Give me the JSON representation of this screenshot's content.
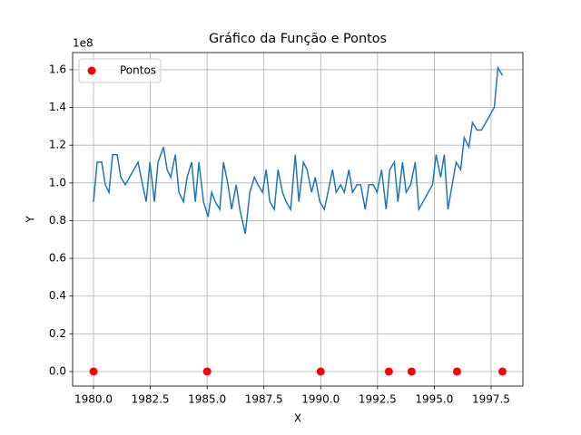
{
  "chart_data": {
    "type": "line",
    "title": "Gráfico da Função e Pontos",
    "x_label": "X",
    "y_label": "Y",
    "y_offset_label": "1e8",
    "xlim": [
      1979.08,
      1998.9
    ],
    "ylim": [
      -0.077,
      1.691
    ],
    "xticks": [
      {
        "value": 1980,
        "label": "1980.0"
      },
      {
        "value": 1982.5,
        "label": "1982.5"
      },
      {
        "value": 1985,
        "label": "1985.0"
      },
      {
        "value": 1987.5,
        "label": "1987.5"
      },
      {
        "value": 1990,
        "label": "1990.0"
      },
      {
        "value": 1992.5,
        "label": "1992.5"
      },
      {
        "value": 1995,
        "label": "1995.0"
      },
      {
        "value": 1997.5,
        "label": "1997.5"
      }
    ],
    "yticks": [
      {
        "value": 0,
        "label": "0.0"
      },
      0.2,
      0.4,
      0.6,
      0.8,
      {
        "value": 1,
        "label": "1.0"
      },
      1.2,
      1.4,
      1.6
    ],
    "grid": true,
    "legend": "upper left",
    "series": [
      {
        "type": "line",
        "color": "#1f77b4",
        "x": [
          1980.0,
          1980.16,
          1980.36,
          1980.52,
          1980.68,
          1980.84,
          1981.04,
          1981.2,
          1981.4,
          1981.96,
          1982.16,
          1982.32,
          1982.48,
          1982.68,
          1982.84,
          1983.08,
          1983.24,
          1983.4,
          1983.6,
          1983.76,
          1983.96,
          1984.12,
          1984.32,
          1984.48,
          1984.64,
          1984.84,
          1985.04,
          1985.2,
          1985.36,
          1985.56,
          1985.72,
          1985.92,
          1986.08,
          1986.28,
          1986.44,
          1986.68,
          1986.88,
          1987.08,
          1987.24,
          1987.44,
          1987.6,
          1987.76,
          1987.96,
          1988.12,
          1988.32,
          1988.48,
          1988.68,
          1988.88,
          1989.04,
          1989.24,
          1989.4,
          1989.6,
          1989.76,
          1989.96,
          1990.16,
          1990.32,
          1990.52,
          1990.68,
          1990.88,
          1991.04,
          1991.24,
          1991.4,
          1991.6,
          1991.76,
          1991.96,
          1992.12,
          1992.32,
          1992.48,
          1992.68,
          1992.88,
          1993.04,
          1993.24,
          1993.4,
          1993.6,
          1993.76,
          1993.96,
          1994.16,
          1994.32,
          1994.92,
          1995.08,
          1995.28,
          1995.44,
          1995.6,
          1995.96,
          1996.16,
          1996.32,
          1996.52,
          1996.68,
          1996.88,
          1997.08,
          1997.64,
          1997.8,
          1998.0
        ],
        "values": [
          0.9,
          1.11,
          1.11,
          0.99,
          0.95,
          1.15,
          1.15,
          1.03,
          0.99,
          1.11,
          0.99,
          0.9,
          1.11,
          0.9,
          1.11,
          1.19,
          1.07,
          1.03,
          1.15,
          0.95,
          0.9,
          1.03,
          1.11,
          0.9,
          1.11,
          0.9,
          0.82,
          0.95,
          0.9,
          0.86,
          1.11,
          0.99,
          0.86,
          0.99,
          0.86,
          0.73,
          0.95,
          1.03,
          0.99,
          0.95,
          1.07,
          0.9,
          0.86,
          1.07,
          0.95,
          0.9,
          0.86,
          1.15,
          0.9,
          1.11,
          1.07,
          0.95,
          1.03,
          0.9,
          0.86,
          0.95,
          1.07,
          0.95,
          0.99,
          0.95,
          1.07,
          0.95,
          0.99,
          0.99,
          0.86,
          0.99,
          0.99,
          0.95,
          1.07,
          0.86,
          1.07,
          1.11,
          0.9,
          1.11,
          0.95,
          0.99,
          1.11,
          0.86,
          0.99,
          1.15,
          1.03,
          1.15,
          0.86,
          1.11,
          1.07,
          1.24,
          1.19,
          1.32,
          1.28,
          1.28,
          1.4,
          1.61,
          1.57
        ]
      },
      {
        "type": "scatter",
        "name": "Pontos",
        "color": "#ff0000",
        "x": [
          1980,
          1985,
          1990,
          1993,
          1994,
          1996,
          1998
        ],
        "values": [
          0,
          0,
          0,
          0,
          0,
          0,
          0
        ]
      }
    ]
  }
}
